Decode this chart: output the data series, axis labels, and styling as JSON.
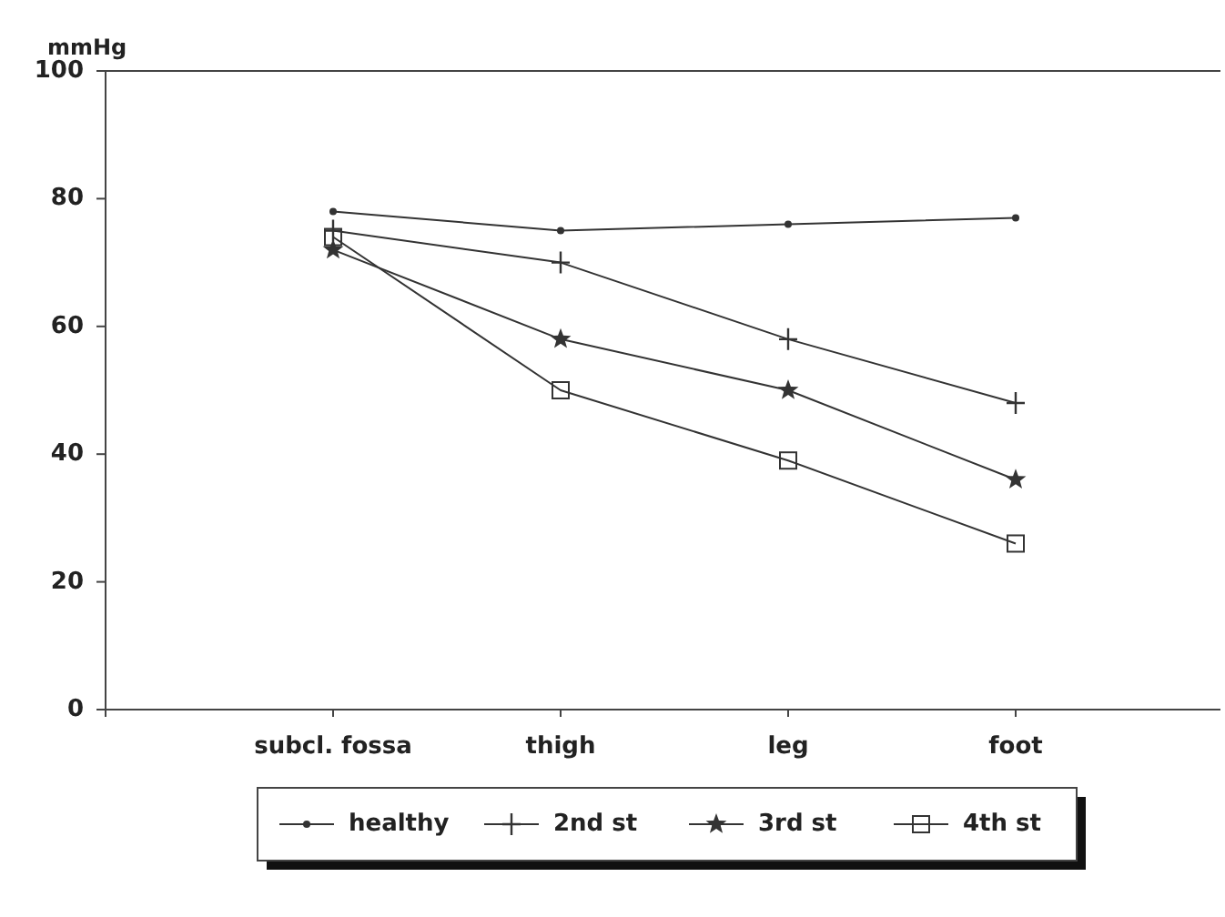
{
  "chart_data": {
    "type": "line",
    "ylabel": "mmHg",
    "categories": [
      "subcl. fossa",
      "thigh",
      "leg",
      "foot"
    ],
    "series": [
      {
        "name": "healthy",
        "color": "#333333",
        "marker": "circle",
        "values": [
          78,
          75,
          76,
          77
        ]
      },
      {
        "name": "2nd st",
        "color": "#333333",
        "marker": "cross",
        "values": [
          75,
          70,
          58,
          48
        ]
      },
      {
        "name": "3rd st",
        "color": "#333333",
        "marker": "star",
        "values": [
          72,
          58,
          50,
          36
        ]
      },
      {
        "name": "4th st",
        "color": "#333333",
        "marker": "square",
        "values": [
          74,
          50,
          39,
          26
        ]
      }
    ],
    "ylim": [
      0,
      100
    ],
    "yticks": [
      0,
      20,
      40,
      60,
      80,
      100
    ],
    "grid": false,
    "legend": "bottom",
    "line_style": "solid"
  }
}
